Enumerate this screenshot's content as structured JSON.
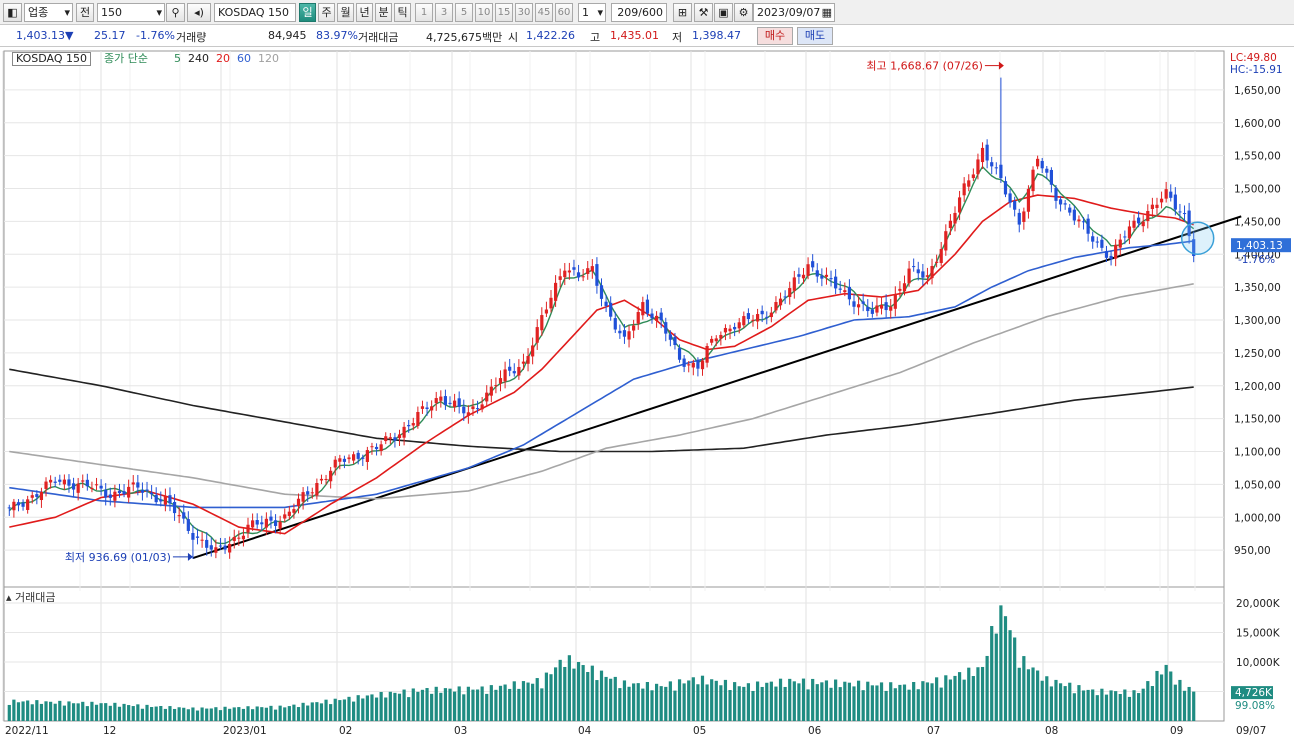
{
  "toolbar": {
    "market": "업종",
    "code_prefix": "전",
    "code": "150",
    "symbol_name": "KOSDAQ 150",
    "periods": [
      "일",
      "주",
      "월",
      "년",
      "분",
      "틱"
    ],
    "active_period": "일",
    "intervals": [
      "1",
      "3",
      "5",
      "10",
      "15",
      "30",
      "45",
      "60"
    ],
    "interval_value": "1",
    "count": "209/600",
    "date": "2023/09/07"
  },
  "quote": {
    "price": "1,403.13",
    "direction": "▼",
    "change": "25.17",
    "change_pct": "-1.76%",
    "volume_label": "거래량",
    "volume": "84,945",
    "volume_ratio": "83.97%",
    "amount_label": "거래대금",
    "amount": "4,725,675백만",
    "open_label": "시",
    "open": "1,422.26",
    "high_label": "고",
    "high": "1,435.01",
    "low_label": "저",
    "low": "1,398.47",
    "buy_label": "매수",
    "sell_label": "매도"
  },
  "legend": {
    "symbol": "KOSDAQ 150",
    "indicator": "종가 단순",
    "ma": [
      {
        "period": "5",
        "color": "#2e8b57"
      },
      {
        "period": "240",
        "color": "#222222"
      },
      {
        "period": "20",
        "color": "#e01b1b"
      },
      {
        "period": "60",
        "color": "#2f5fd0"
      },
      {
        "period": "120",
        "color": "#a0a0a0"
      }
    ]
  },
  "chart_data": {
    "type": "candlestick",
    "y_axis": {
      "range": [
        900,
        1700
      ],
      "ticks": [
        "1,650,00",
        "1,600,00",
        "1,550,00",
        "1,500,00",
        "1,450,00",
        "1,400,00",
        "1,350,00",
        "1,300,00",
        "1,250,00",
        "1,200,00",
        "1,150,00",
        "1,100,00",
        "1,050,00",
        "1,000,00",
        "950,00"
      ],
      "tick_values": [
        1650,
        1600,
        1550,
        1500,
        1450,
        1400,
        1350,
        1300,
        1250,
        1200,
        1150,
        1100,
        1050,
        1000,
        950
      ]
    },
    "x_axis": {
      "labels": [
        "2022/11",
        "12",
        "2023/01",
        "02",
        "03",
        "04",
        "05",
        "06",
        "07",
        "08",
        "09",
        "09/07"
      ]
    },
    "right_labels": {
      "lc": "LC:49.80",
      "hc": "HC:-15.91",
      "last_price": "1,403.13",
      "last_pct": "-1.76%"
    },
    "annotations": {
      "high": "최고 1,668.67 (07/26)",
      "low": "최저 936.69 (01/03)"
    },
    "series_anchor_points": {
      "close": [
        [
          0,
          1010
        ],
        [
          10,
          1055
        ],
        [
          16,
          1050
        ],
        [
          22,
          1035
        ],
        [
          28,
          1045
        ],
        [
          34,
          1025
        ],
        [
          40,
          975
        ],
        [
          45,
          945
        ],
        [
          52,
          985
        ],
        [
          60,
          1000
        ],
        [
          66,
          1045
        ],
        [
          72,
          1085
        ],
        [
          80,
          1105
        ],
        [
          86,
          1135
        ],
        [
          94,
          1185
        ],
        [
          100,
          1155
        ],
        [
          106,
          1205
        ],
        [
          112,
          1235
        ],
        [
          116,
          1300
        ],
        [
          121,
          1385
        ],
        [
          124,
          1365
        ],
        [
          127,
          1375
        ],
        [
          130,
          1320
        ],
        [
          134,
          1265
        ],
        [
          138,
          1325
        ],
        [
          142,
          1295
        ],
        [
          146,
          1240
        ],
        [
          150,
          1230
        ],
        [
          154,
          1275
        ],
        [
          158,
          1295
        ],
        [
          164,
          1305
        ],
        [
          170,
          1345
        ],
        [
          174,
          1385
        ],
        [
          180,
          1350
        ],
        [
          184,
          1330
        ],
        [
          188,
          1310
        ],
        [
          192,
          1325
        ],
        [
          196,
          1375
        ],
        [
          200,
          1365
        ],
        [
          204,
          1430
        ],
        [
          208,
          1500
        ],
        [
          212,
          1560
        ],
        [
          216,
          1510
        ],
        [
          220,
          1450
        ],
        [
          224,
          1545
        ],
        [
          228,
          1490
        ],
        [
          232,
          1455
        ],
        [
          236,
          1425
        ],
        [
          240,
          1395
        ],
        [
          244,
          1440
        ],
        [
          248,
          1465
        ],
        [
          252,
          1490
        ],
        [
          256,
          1460
        ],
        [
          258,
          1403.13
        ]
      ],
      "ma5": [
        [
          0,
          1010
        ],
        [
          10,
          1045
        ],
        [
          16,
          1048
        ],
        [
          22,
          1040
        ],
        [
          28,
          1040
        ],
        [
          34,
          1028
        ],
        [
          40,
          990
        ],
        [
          45,
          960
        ],
        [
          52,
          975
        ],
        [
          60,
          995
        ],
        [
          66,
          1030
        ],
        [
          72,
          1075
        ],
        [
          80,
          1100
        ],
        [
          86,
          1125
        ],
        [
          94,
          1175
        ],
        [
          100,
          1165
        ],
        [
          106,
          1195
        ],
        [
          112,
          1225
        ],
        [
          116,
          1280
        ],
        [
          121,
          1360
        ],
        [
          124,
          1370
        ],
        [
          127,
          1372
        ],
        [
          130,
          1340
        ],
        [
          134,
          1285
        ],
        [
          138,
          1300
        ],
        [
          142,
          1300
        ],
        [
          146,
          1260
        ],
        [
          150,
          1235
        ],
        [
          154,
          1262
        ],
        [
          158,
          1285
        ],
        [
          164,
          1300
        ],
        [
          170,
          1335
        ],
        [
          174,
          1370
        ],
        [
          180,
          1360
        ],
        [
          184,
          1340
        ],
        [
          188,
          1318
        ],
        [
          192,
          1320
        ],
        [
          196,
          1355
        ],
        [
          200,
          1365
        ],
        [
          204,
          1415
        ],
        [
          208,
          1480
        ],
        [
          212,
          1530
        ],
        [
          216,
          1515
        ],
        [
          220,
          1480
        ],
        [
          224,
          1520
        ],
        [
          228,
          1505
        ],
        [
          232,
          1470
        ],
        [
          236,
          1440
        ],
        [
          240,
          1410
        ],
        [
          244,
          1425
        ],
        [
          248,
          1455
        ],
        [
          252,
          1470
        ],
        [
          256,
          1455
        ],
        [
          258,
          1440
        ]
      ],
      "ma20": [
        [
          0,
          985
        ],
        [
          10,
          1000
        ],
        [
          20,
          1030
        ],
        [
          30,
          1040
        ],
        [
          40,
          1020
        ],
        [
          50,
          985
        ],
        [
          60,
          975
        ],
        [
          70,
          1020
        ],
        [
          80,
          1060
        ],
        [
          90,
          1110
        ],
        [
          100,
          1155
        ],
        [
          110,
          1190
        ],
        [
          116,
          1225
        ],
        [
          122,
          1270
        ],
        [
          128,
          1315
        ],
        [
          134,
          1330
        ],
        [
          140,
          1305
        ],
        [
          146,
          1270
        ],
        [
          152,
          1255
        ],
        [
          158,
          1260
        ],
        [
          166,
          1290
        ],
        [
          174,
          1330
        ],
        [
          182,
          1340
        ],
        [
          190,
          1335
        ],
        [
          198,
          1345
        ],
        [
          206,
          1400
        ],
        [
          212,
          1450
        ],
        [
          218,
          1480
        ],
        [
          224,
          1490
        ],
        [
          232,
          1485
        ],
        [
          240,
          1470
        ],
        [
          248,
          1460
        ],
        [
          254,
          1455
        ],
        [
          258,
          1445
        ]
      ],
      "ma60": [
        [
          0,
          1045
        ],
        [
          20,
          1025
        ],
        [
          40,
          1015
        ],
        [
          60,
          1015
        ],
        [
          80,
          1035
        ],
        [
          100,
          1075
        ],
        [
          112,
          1110
        ],
        [
          124,
          1160
        ],
        [
          136,
          1210
        ],
        [
          148,
          1235
        ],
        [
          160,
          1255
        ],
        [
          172,
          1275
        ],
        [
          184,
          1300
        ],
        [
          196,
          1305
        ],
        [
          206,
          1320
        ],
        [
          214,
          1350
        ],
        [
          222,
          1375
        ],
        [
          232,
          1395
        ],
        [
          244,
          1410
        ],
        [
          252,
          1415
        ],
        [
          258,
          1420
        ]
      ],
      "ma120": [
        [
          0,
          1100
        ],
        [
          20,
          1080
        ],
        [
          40,
          1060
        ],
        [
          60,
          1035
        ],
        [
          80,
          1028
        ],
        [
          100,
          1040
        ],
        [
          116,
          1070
        ],
        [
          130,
          1105
        ],
        [
          146,
          1125
        ],
        [
          162,
          1150
        ],
        [
          178,
          1185
        ],
        [
          194,
          1220
        ],
        [
          210,
          1265
        ],
        [
          226,
          1305
        ],
        [
          242,
          1335
        ],
        [
          258,
          1355
        ]
      ],
      "ma240": [
        [
          0,
          1225
        ],
        [
          20,
          1200
        ],
        [
          40,
          1170
        ],
        [
          60,
          1145
        ],
        [
          80,
          1120
        ],
        [
          100,
          1108
        ],
        [
          120,
          1100
        ],
        [
          140,
          1100
        ],
        [
          160,
          1105
        ],
        [
          178,
          1125
        ],
        [
          196,
          1140
        ],
        [
          214,
          1158
        ],
        [
          232,
          1178
        ],
        [
          248,
          1190
        ],
        [
          258,
          1198
        ]
      ],
      "trendline": [
        [
          40,
          938
        ],
        [
          258,
          1435
        ],
        [
          264,
          1450
        ]
      ],
      "high_point": {
        "index": 216,
        "value": 1668.67
      },
      "low_point": {
        "index": 40,
        "value": 936.69
      }
    },
    "volume_panel": {
      "title": "거래대금",
      "range": [
        0,
        20000
      ],
      "ticks": [
        "20,000K",
        "15,000K",
        "10,000K",
        "5,000K"
      ],
      "tick_values": [
        20000,
        15000,
        10000,
        5000
      ],
      "last_label": "4,726K",
      "last_pct": "99.08%",
      "anchor_points": [
        [
          0,
          3200
        ],
        [
          20,
          2800
        ],
        [
          40,
          2000
        ],
        [
          60,
          2300
        ],
        [
          80,
          4200
        ],
        [
          90,
          5000
        ],
        [
          104,
          5200
        ],
        [
          116,
          6500
        ],
        [
          121,
          10000
        ],
        [
          126,
          8500
        ],
        [
          134,
          6000
        ],
        [
          142,
          5600
        ],
        [
          150,
          6800
        ],
        [
          160,
          5600
        ],
        [
          170,
          6400
        ],
        [
          184,
          6000
        ],
        [
          196,
          5600
        ],
        [
          204,
          6800
        ],
        [
          212,
          8500
        ],
        [
          216,
          19600
        ],
        [
          220,
          10200
        ],
        [
          226,
          6600
        ],
        [
          236,
          4800
        ],
        [
          246,
          4600
        ],
        [
          252,
          8800
        ],
        [
          254,
          6500
        ],
        [
          258,
          4726
        ]
      ]
    }
  }
}
